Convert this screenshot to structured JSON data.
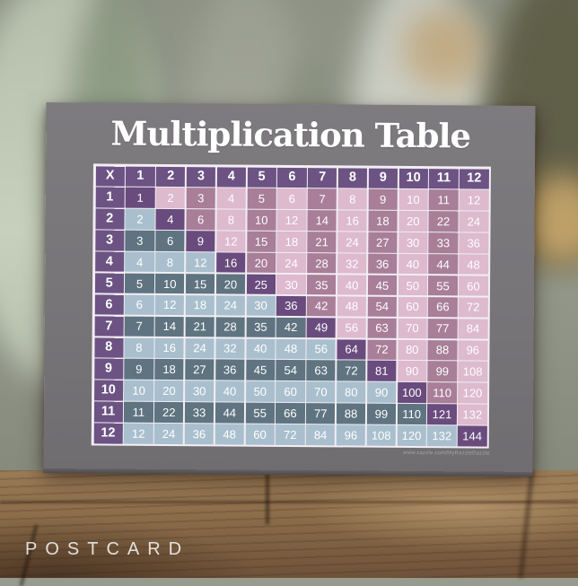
{
  "product": {
    "label": "POSTCARD",
    "watermark": "www.zazzle.com/MyRazzleDazzle"
  },
  "card": {
    "title": "Multiplication Table"
  },
  "chart_data": {
    "type": "table",
    "title": "Multiplication Table",
    "corner_label": "X",
    "column_headers": [
      "1",
      "2",
      "3",
      "4",
      "5",
      "6",
      "7",
      "8",
      "9",
      "10",
      "11",
      "12"
    ],
    "row_headers": [
      "1",
      "2",
      "3",
      "4",
      "5",
      "6",
      "7",
      "8",
      "9",
      "10",
      "11",
      "12"
    ],
    "rows": [
      [
        1,
        2,
        3,
        4,
        5,
        6,
        7,
        8,
        9,
        10,
        11,
        12
      ],
      [
        2,
        4,
        6,
        8,
        10,
        12,
        14,
        16,
        18,
        20,
        22,
        24
      ],
      [
        3,
        6,
        9,
        12,
        15,
        18,
        21,
        24,
        27,
        30,
        33,
        36
      ],
      [
        4,
        8,
        12,
        16,
        20,
        24,
        28,
        32,
        36,
        40,
        44,
        48
      ],
      [
        5,
        10,
        15,
        20,
        25,
        30,
        35,
        40,
        45,
        50,
        55,
        60
      ],
      [
        6,
        12,
        18,
        24,
        30,
        36,
        42,
        48,
        54,
        60,
        66,
        72
      ],
      [
        7,
        14,
        21,
        28,
        35,
        42,
        49,
        56,
        63,
        70,
        77,
        84
      ],
      [
        8,
        16,
        24,
        32,
        40,
        48,
        56,
        64,
        72,
        80,
        88,
        96
      ],
      [
        9,
        18,
        27,
        36,
        45,
        54,
        63,
        72,
        81,
        90,
        99,
        108
      ],
      [
        10,
        20,
        30,
        40,
        50,
        60,
        70,
        80,
        90,
        100,
        110,
        120
      ],
      [
        11,
        22,
        33,
        44,
        55,
        66,
        77,
        88,
        99,
        110,
        121,
        132
      ],
      [
        12,
        24,
        36,
        48,
        60,
        72,
        84,
        96,
        108,
        120,
        132,
        144
      ]
    ],
    "layout_hints": {
      "header_row_and_column": "dark purple",
      "diagonal_squares": "dark purple",
      "above_diagonal": "vertical stripes: even columns light pink, odd columns dark mauve",
      "below_diagonal": "horizontal stripes: even rows light blue, odd rows dark teal"
    }
  },
  "colors": {
    "header_purple": "#6c5383",
    "diagonal_purple": "#6a4b7d",
    "pink_light": "#ddbace",
    "mauve_dark": "#a87e98",
    "blue_light": "#a9bfce",
    "teal_dark": "#5f7480",
    "grid_line": "#f2eef4",
    "card_gray": "#777578",
    "title_white": "#ffffff"
  }
}
